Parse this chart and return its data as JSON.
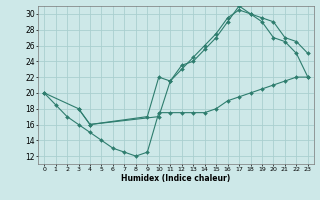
{
  "title": "",
  "xlabel": "Humidex (Indice chaleur)",
  "bg_color": "#cde8e8",
  "grid_color": "#aacfcf",
  "line_color": "#2e7d6e",
  "xlim": [
    -0.5,
    23.5
  ],
  "ylim": [
    11,
    31
  ],
  "xticks": [
    0,
    1,
    2,
    3,
    4,
    5,
    6,
    7,
    8,
    9,
    10,
    11,
    12,
    13,
    14,
    15,
    16,
    17,
    18,
    19,
    20,
    21,
    22,
    23
  ],
  "yticks": [
    12,
    14,
    16,
    18,
    20,
    22,
    24,
    26,
    28,
    30
  ],
  "line1_x": [
    0,
    1,
    2,
    3,
    4,
    5,
    6,
    7,
    8,
    9,
    10,
    11,
    12,
    13,
    14,
    15,
    16,
    17,
    18,
    19,
    20,
    21,
    22,
    23
  ],
  "line1_y": [
    20,
    18.5,
    17,
    16,
    15,
    14,
    13,
    12.5,
    12,
    12.5,
    17.5,
    17.5,
    17.5,
    17.5,
    17.5,
    18,
    19,
    19.5,
    20,
    20.5,
    21,
    21.5,
    22,
    22
  ],
  "line2_x": [
    0,
    3,
    4,
    9,
    10,
    11,
    12,
    13,
    14,
    15,
    16,
    17,
    18,
    19,
    20,
    21,
    22,
    23
  ],
  "line2_y": [
    20,
    18,
    16,
    17,
    22,
    21.5,
    23.5,
    24,
    25.5,
    27,
    29,
    31,
    30,
    29,
    27,
    26.5,
    25,
    22
  ],
  "line3_x": [
    3,
    4,
    10,
    11,
    12,
    13,
    14,
    15,
    16,
    17,
    18,
    19,
    20,
    21,
    22,
    23
  ],
  "line3_y": [
    18,
    16,
    17,
    21.5,
    23,
    24.5,
    26,
    27.5,
    29.5,
    30.5,
    30,
    29.5,
    29,
    27,
    26.5,
    25
  ]
}
